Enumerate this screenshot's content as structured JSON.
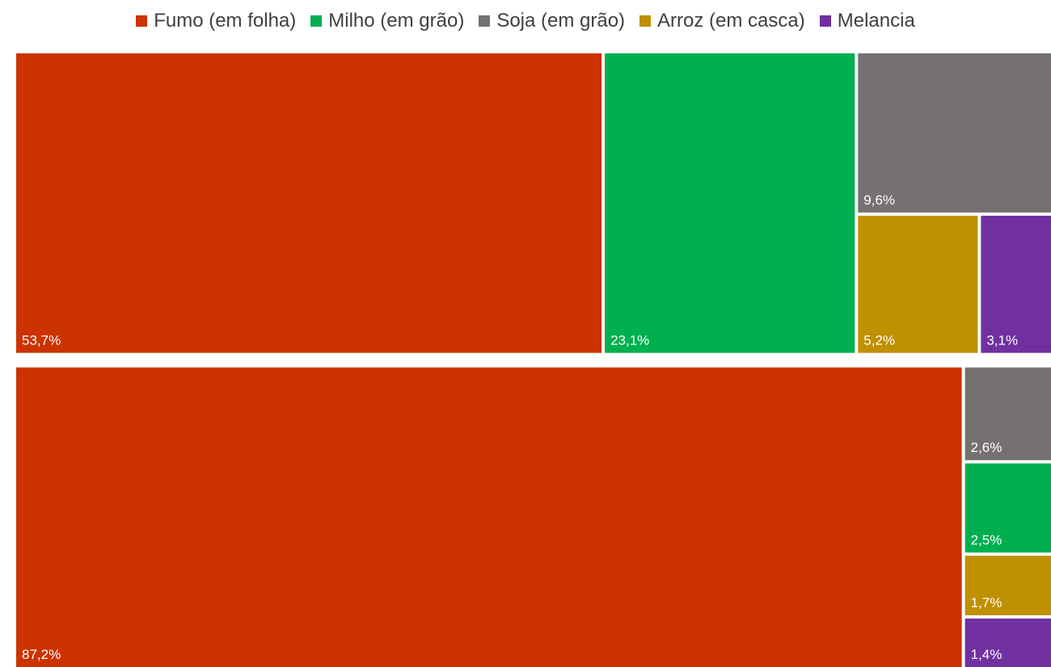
{
  "chart_data": {
    "type": "treemap",
    "title": "",
    "legend": {
      "placement": "top",
      "items": [
        {
          "name": "Fumo (em folha)",
          "color": "#CC3300"
        },
        {
          "name": "Milho (em grão)",
          "color": "#00B050"
        },
        {
          "name": "Soja (em grão)",
          "color": "#767171"
        },
        {
          "name": "Arroz (em casca)",
          "color": "#BF9000"
        },
        {
          "name": "Melancia",
          "color": "#7030A0"
        }
      ]
    },
    "groups": [
      {
        "name": "",
        "items": [
          {
            "category": "Fumo (em folha)",
            "value": 53.7,
            "label": "53,7%"
          },
          {
            "category": "Milho (em grão)",
            "value": 23.1,
            "label": "23,1%"
          },
          {
            "category": "Soja (em grão)",
            "value": 9.6,
            "label": "9,6%"
          },
          {
            "category": "Arroz (em casca)",
            "value": 5.2,
            "label": "5,2%"
          },
          {
            "category": "Melancia",
            "value": 3.1,
            "label": "3,1%"
          }
        ]
      },
      {
        "name": "",
        "items": [
          {
            "category": "Fumo (em folha)",
            "value": 87.2,
            "label": "87,2%"
          },
          {
            "category": "Soja (em grão)",
            "value": 2.6,
            "label": "2,6%"
          },
          {
            "category": "Milho (em grão)",
            "value": 2.5,
            "label": "2,5%"
          },
          {
            "category": "Arroz (em casca)",
            "value": 1.7,
            "label": "1,7%"
          },
          {
            "category": "Melancia",
            "value": 1.4,
            "label": "1,4%"
          }
        ]
      }
    ]
  }
}
